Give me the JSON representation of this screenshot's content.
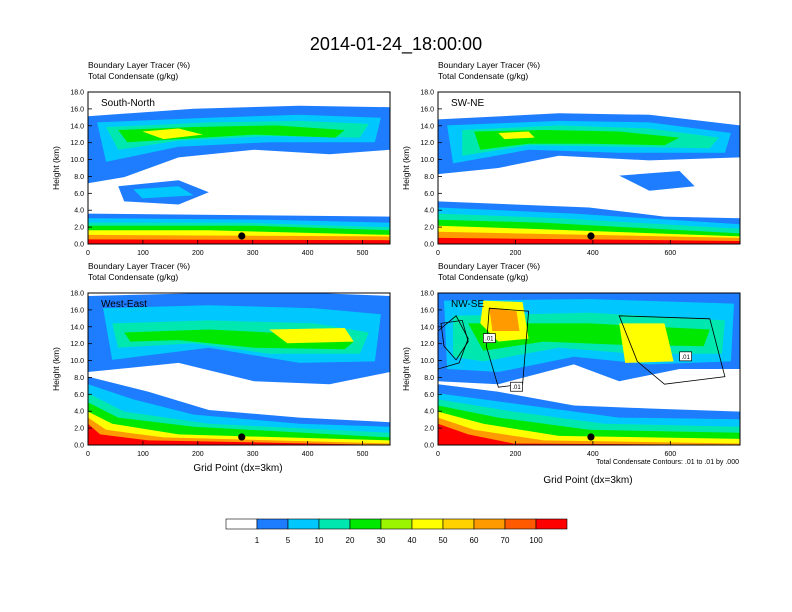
{
  "figure": {
    "title": "2014-01-24_18:00:00",
    "x_axis_title": "Grid Point (dx=3km)",
    "contour_note": "Total Condensate Contours: .01 to .01 by .000",
    "contour_label": ".01"
  },
  "colors": {
    "levels": [
      "#ffffff",
      "#1e7cff",
      "#00c8ff",
      "#00e8b0",
      "#00e800",
      "#9cf500",
      "#ffff00",
      "#ffd200",
      "#ff9a00",
      "#ff5a00",
      "#ff0000"
    ]
  },
  "chart_data": [
    {
      "type": "heatmap",
      "panel_label": "South-North",
      "title_line1": "Boundary Layer Tracer   (%)",
      "title_line2": "Total Condensate   (g/kg)",
      "ylabel": "Height (km)",
      "xlim": [
        0,
        550
      ],
      "ylim": [
        0,
        18
      ],
      "xticks": [
        0,
        100,
        200,
        300,
        400,
        500
      ],
      "yticks": [
        "0.0",
        "2.0",
        "4.0",
        "6.0",
        "8.0",
        "10.0",
        "12.0",
        "14.0",
        "16.0",
        "18.0"
      ],
      "marker_x": 280
    },
    {
      "type": "heatmap",
      "panel_label": "SW-NE",
      "title_line1": "Boundary Layer Tracer   (%)",
      "title_line2": "Total Condensate   (g/kg)",
      "ylabel": "Height (km)",
      "xlim": [
        0,
        780
      ],
      "ylim": [
        0,
        18
      ],
      "xticks": [
        0,
        200,
        400,
        600
      ],
      "yticks": [
        "0.0",
        "2.0",
        "4.0",
        "6.0",
        "8.0",
        "10.0",
        "12.0",
        "14.0",
        "16.0",
        "18.0"
      ],
      "marker_x": 395
    },
    {
      "type": "heatmap",
      "panel_label": "West-East",
      "title_line1": "Boundary Layer Tracer   (%)",
      "title_line2": "Total Condensate   (g/kg)",
      "ylabel": "Height (km)",
      "xlim": [
        0,
        550
      ],
      "ylim": [
        0,
        18
      ],
      "xticks": [
        0,
        100,
        200,
        300,
        400,
        500
      ],
      "yticks": [
        "0.0",
        "2.0",
        "4.0",
        "6.0",
        "8.0",
        "10.0",
        "12.0",
        "14.0",
        "16.0",
        "18.0"
      ],
      "marker_x": 280
    },
    {
      "type": "heatmap",
      "panel_label": "NW-SE",
      "title_line1": "Boundary Layer Tracer   (%)",
      "title_line2": "Total Condensate   (g/kg)",
      "ylabel": "Height (km)",
      "xlim": [
        0,
        780
      ],
      "ylim": [
        0,
        18
      ],
      "xticks": [
        0,
        200,
        400,
        600
      ],
      "yticks": [
        "0.0",
        "2.0",
        "4.0",
        "6.0",
        "8.0",
        "10.0",
        "12.0",
        "14.0",
        "16.0",
        "18.0"
      ],
      "marker_x": 395
    }
  ],
  "colorbar": {
    "labels": [
      "1",
      "5",
      "10",
      "20",
      "30",
      "40",
      "50",
      "60",
      "70",
      "100"
    ]
  }
}
